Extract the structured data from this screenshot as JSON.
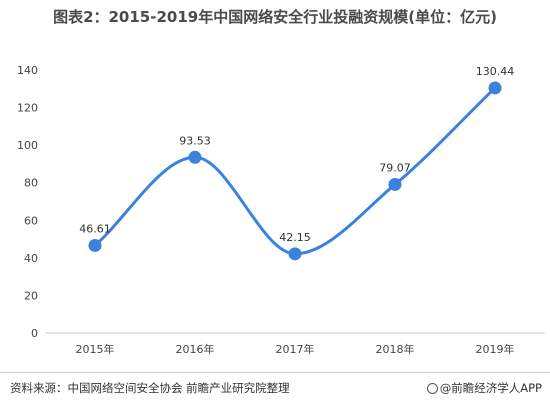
{
  "chart_data": {
    "type": "line",
    "title": "图表2：2015-2019年中国网络安全行业投融资规模(单位：亿元)",
    "categories": [
      "2015年",
      "2016年",
      "2017年",
      "2018年",
      "2019年"
    ],
    "series": [
      {
        "values": [
          46.61,
          93.53,
          42.15,
          79.07,
          130.44
        ],
        "labels": [
          "46.61",
          "93.53",
          "42.15",
          "79.07",
          "130.44"
        ]
      }
    ],
    "yticks": [
      0,
      20,
      40,
      60,
      80,
      100,
      120,
      140
    ],
    "ylim": [
      0,
      140
    ],
    "grid": false,
    "line_color": "#3b82dc",
    "smooth": true
  },
  "footer": {
    "source": "资料来源：中国网络空间安全协会 前瞻产业研究院整理",
    "credit": "@前瞻经济学人APP"
  }
}
